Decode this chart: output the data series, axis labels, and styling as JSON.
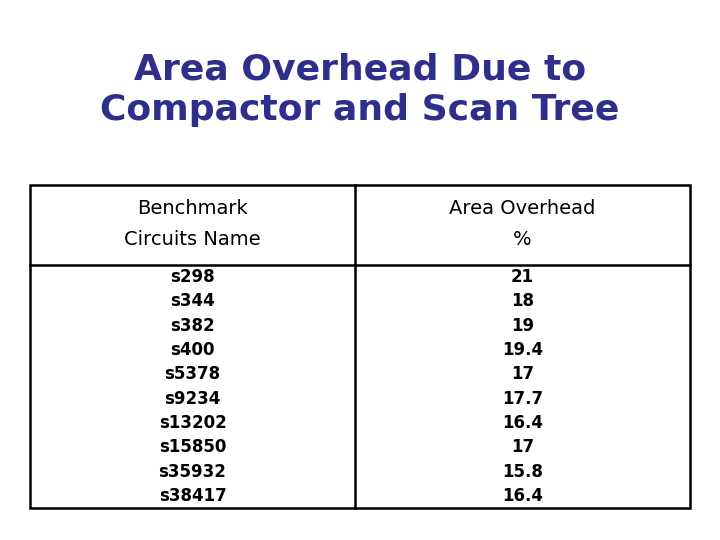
{
  "title_line1": "Area Overhead Due to",
  "title_line2": "Compactor and Scan Tree",
  "title_color": "#2E2E8B",
  "col1_header1": "Benchmark",
  "col1_header2": "Circuits Name",
  "col2_header1": "Area Overhead",
  "col2_header2": "%",
  "header_color": "#000000",
  "data_color": "#000000",
  "circuits": [
    "s298",
    "s344",
    "s382",
    "s400",
    "s5378",
    "s9234",
    "s13202",
    "s15850",
    "s35932",
    "s38417"
  ],
  "overhead": [
    "21",
    "18",
    "19",
    "19.4",
    "17",
    "17.7",
    "16.4",
    "17",
    "15.8",
    "16.4"
  ],
  "bg_color": "#ffffff",
  "table_border_color": "#000000",
  "title_fontsize": 26,
  "header_fontsize": 14,
  "data_fontsize": 12
}
